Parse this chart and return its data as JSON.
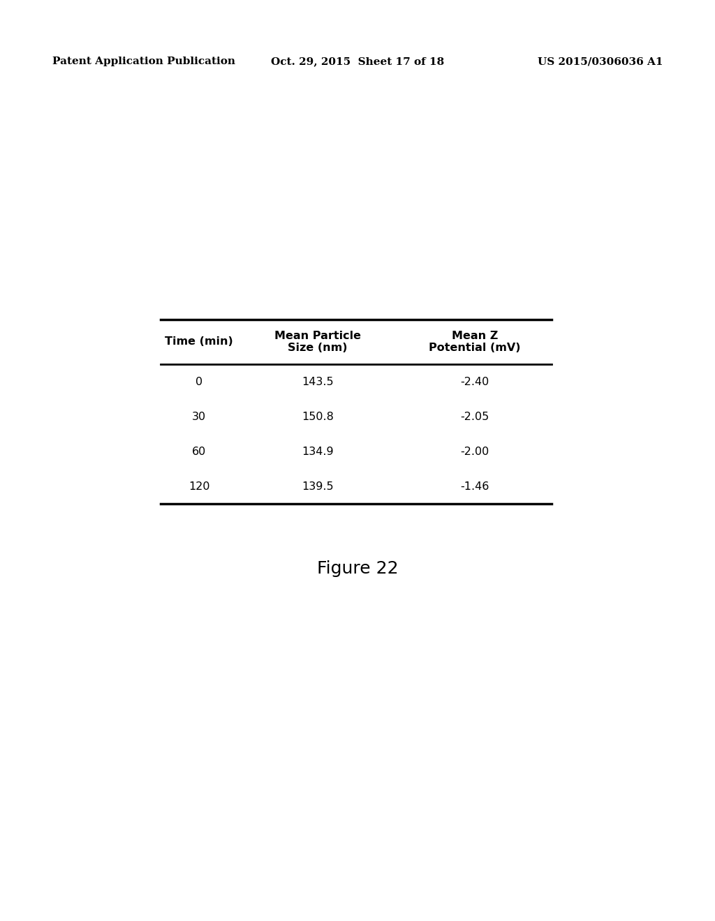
{
  "header_left": "Patent Application Publication",
  "header_middle": "Oct. 29, 2015  Sheet 17 of 18",
  "header_right": "US 2015/0306036 A1",
  "header_fontsize": 11,
  "table_headers": [
    "Time (min)",
    "Mean Particle\nSize (nm)",
    "Mean Z\nPotential (mV)"
  ],
  "table_data": [
    [
      "0",
      "143.5",
      "-2.40"
    ],
    [
      "30",
      "150.8",
      "-2.05"
    ],
    [
      "60",
      "134.9",
      "-2.00"
    ],
    [
      "120",
      "139.5",
      "-1.46"
    ]
  ],
  "figure_caption": "Figure 22",
  "figure_caption_fontsize": 18,
  "background_color": "#ffffff",
  "text_color": "#000000",
  "table_fontsize": 11.5,
  "header_fontsize_main": 11
}
